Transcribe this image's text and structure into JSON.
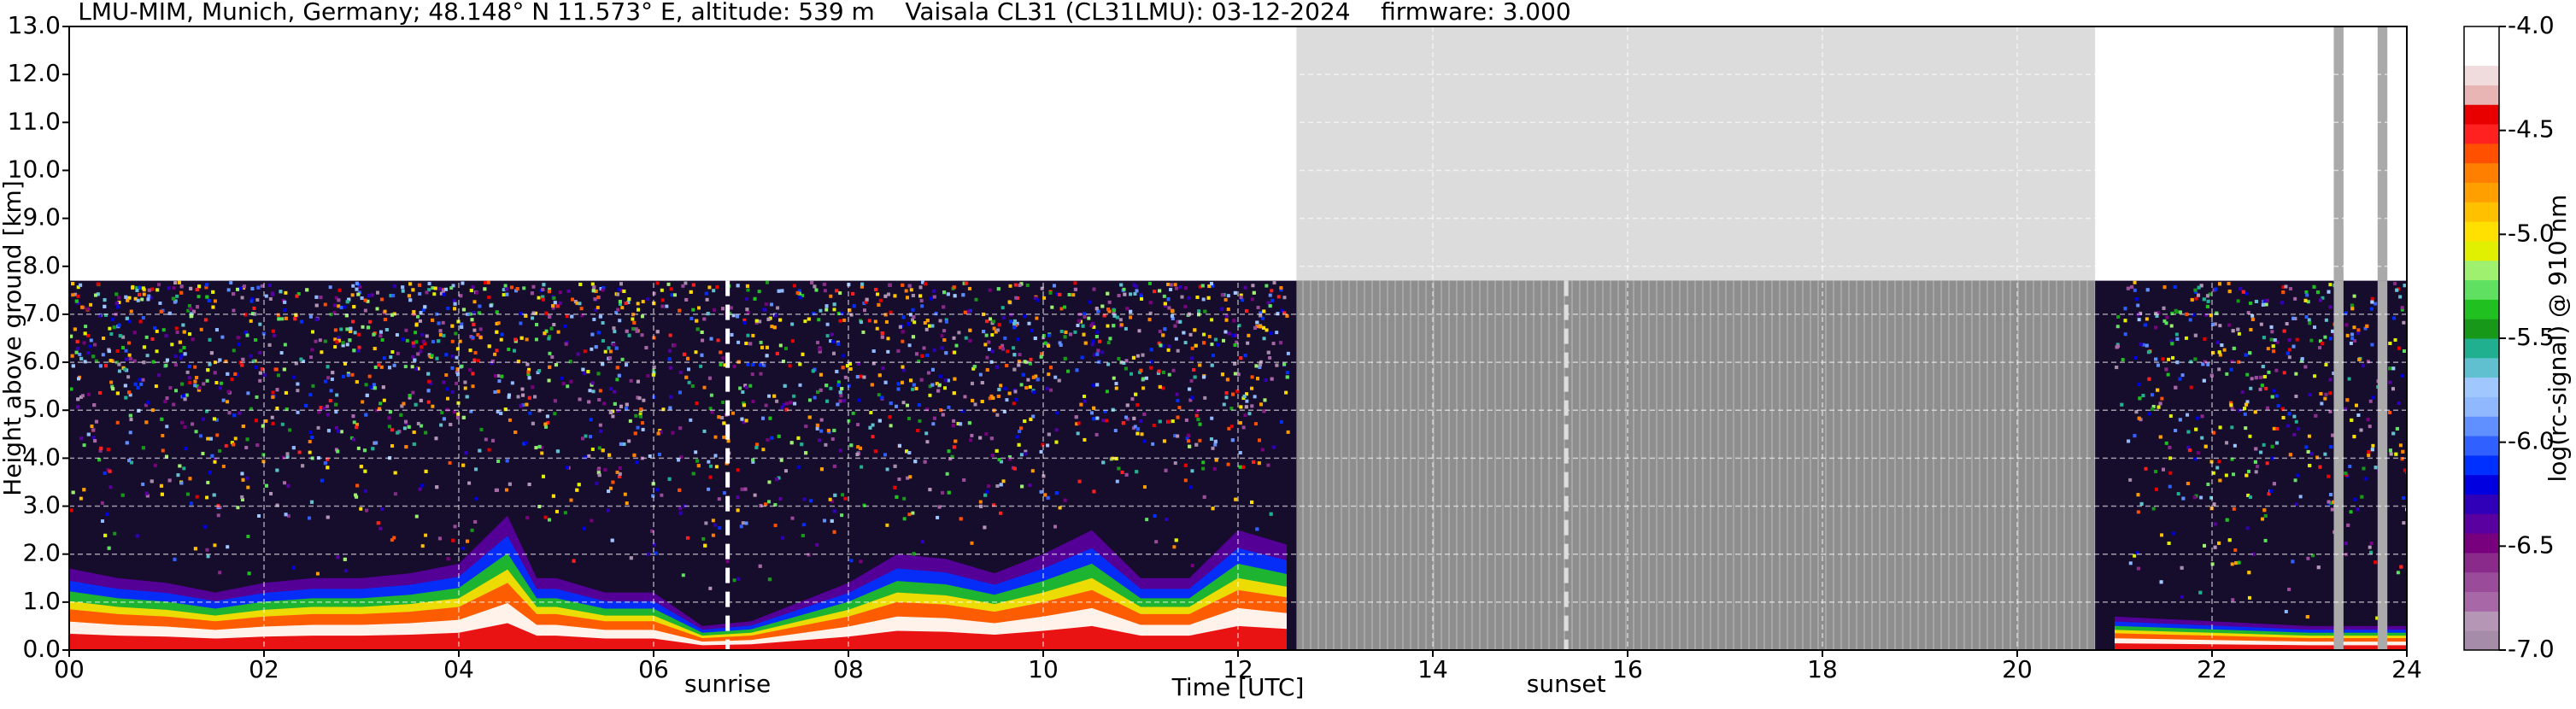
{
  "chart_data": {
    "type": "ceilometer",
    "title": "LMU-MIM, Munich, Germany; 48.148° N 11.573° E, altitude: 539 m    Vaisala CL31 (CL31LMU): 03-12-2024    firmware: 3.000",
    "x_label": "Time [UTC]",
    "y_label": "Height above ground [km]",
    "colorbar_label": "log(rc-signal) @ 910 nm",
    "xlim": [
      0,
      24
    ],
    "xticks": [
      {
        "value": 0,
        "label": "00"
      },
      {
        "value": 2,
        "label": "02"
      },
      {
        "value": 4,
        "label": "04"
      },
      {
        "value": 6,
        "label": "06"
      },
      {
        "value": 8,
        "label": "08"
      },
      {
        "value": 10,
        "label": "10"
      },
      {
        "value": 12,
        "label": "12"
      },
      {
        "value": 14,
        "label": "14"
      },
      {
        "value": 16,
        "label": "16"
      },
      {
        "value": 18,
        "label": "18"
      },
      {
        "value": 20,
        "label": "20"
      },
      {
        "value": 22,
        "label": "22"
      },
      {
        "value": 24,
        "label": "24"
      }
    ],
    "ylim": [
      0,
      13
    ],
    "yticks": [
      {
        "value": 0,
        "label": "0.0"
      },
      {
        "value": 1,
        "label": "1.0"
      },
      {
        "value": 2,
        "label": "2.0"
      },
      {
        "value": 3,
        "label": "3.0"
      },
      {
        "value": 4,
        "label": "4.0"
      },
      {
        "value": 5,
        "label": "5.0"
      },
      {
        "value": 6,
        "label": "6.0"
      },
      {
        "value": 7,
        "label": "7.0"
      },
      {
        "value": 8,
        "label": "8.0"
      },
      {
        "value": 9,
        "label": "9.0"
      },
      {
        "value": 10,
        "label": "10.0"
      },
      {
        "value": 11,
        "label": "11.0"
      },
      {
        "value": 12,
        "label": "12.0"
      },
      {
        "value": 13,
        "label": "13.0"
      }
    ],
    "grid": true,
    "max_range": 7.7,
    "no_data": [
      [
        12.6,
        20.8
      ],
      [
        23.25,
        23.35
      ],
      [
        23.7,
        23.8
      ]
    ],
    "annotations": [
      {
        "x": 6.76,
        "label": "sunrise"
      },
      {
        "x": 15.37,
        "label": "sunset"
      }
    ],
    "x": [
      0,
      0.5,
      1,
      1.5,
      2,
      2.5,
      3,
      3.5,
      4,
      4.5,
      4.8,
      5,
      5.5,
      6,
      6.5,
      7,
      7.5,
      8,
      8.5,
      9,
      9.5,
      10,
      10.5,
      11,
      11.5,
      12,
      12.5,
      12.6,
      20.8,
      21,
      22,
      23,
      24
    ],
    "values": [
      1.7,
      1.5,
      1.4,
      1.2,
      1.4,
      1.5,
      1.5,
      1.6,
      1.8,
      2.8,
      1.5,
      1.5,
      1.2,
      1.2,
      0.5,
      0.6,
      1.0,
      1.4,
      2.0,
      1.9,
      1.6,
      2.0,
      2.5,
      1.5,
      1.5,
      2.5,
      2.2,
      null,
      null,
      0.7,
      0.6,
      0.5,
      0.5
    ],
    "zlim": [
      -7,
      -4
    ],
    "zticks": [
      {
        "value": -7,
        "label": "-7.0"
      },
      -6.5,
      {
        "value": -6,
        "label": "-6.0"
      },
      -5.5,
      {
        "value": -5,
        "label": "-5.0"
      },
      -4.5,
      {
        "value": -4,
        "label": "-4.0"
      }
    ],
    "colorscale": [
      "#a58ca8",
      "#b596b5",
      "#a868a8",
      "#9a4c9a",
      "#8a2a8a",
      "#78007e",
      "#5a00a0",
      "#3000b8",
      "#0000e0",
      "#0030ff",
      "#3060ff",
      "#6090ff",
      "#90b8ff",
      "#a0c8ff",
      "#60c0d0",
      "#20b090",
      "#189818",
      "#20c020",
      "#60e060",
      "#a0f070",
      "#e0f000",
      "#ffe000",
      "#ffc000",
      "#ffa000",
      "#ff8000",
      "#ff5000",
      "#ff2020",
      "#e80000",
      "#e8b4b4",
      "#f0dcdc",
      "#ffffff",
      "#ffffff"
    ]
  }
}
